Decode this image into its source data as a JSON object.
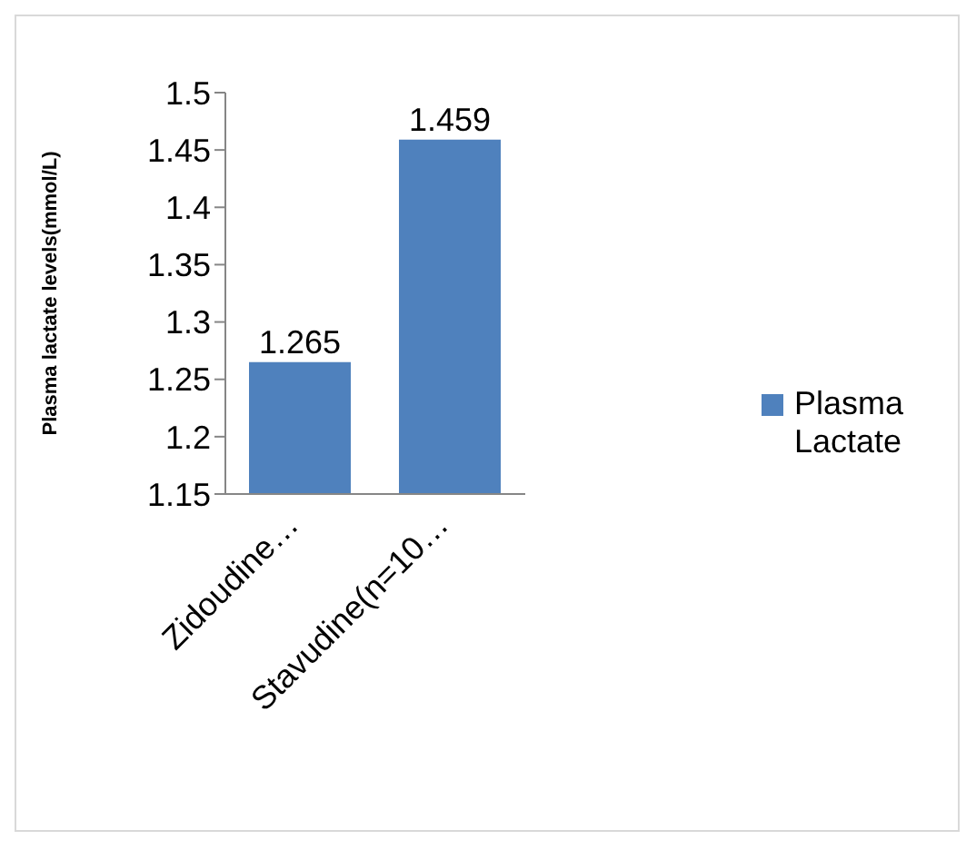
{
  "chart_data": {
    "type": "bar",
    "ylabel": "Plasma lactate levels(mmol/L)",
    "categories": [
      "Zidoudine…",
      "Stavudine(n=10…"
    ],
    "series": [
      {
        "name": "Plasma Lactate",
        "color": "#4f81bd",
        "values": [
          1.265,
          1.459
        ]
      }
    ],
    "ylim": [
      1.15,
      1.5
    ],
    "yticks": [
      1.15,
      1.2,
      1.25,
      1.3,
      1.35,
      1.4,
      1.45,
      1.5
    ],
    "grid": false,
    "legend": "right",
    "data_labels": true
  }
}
